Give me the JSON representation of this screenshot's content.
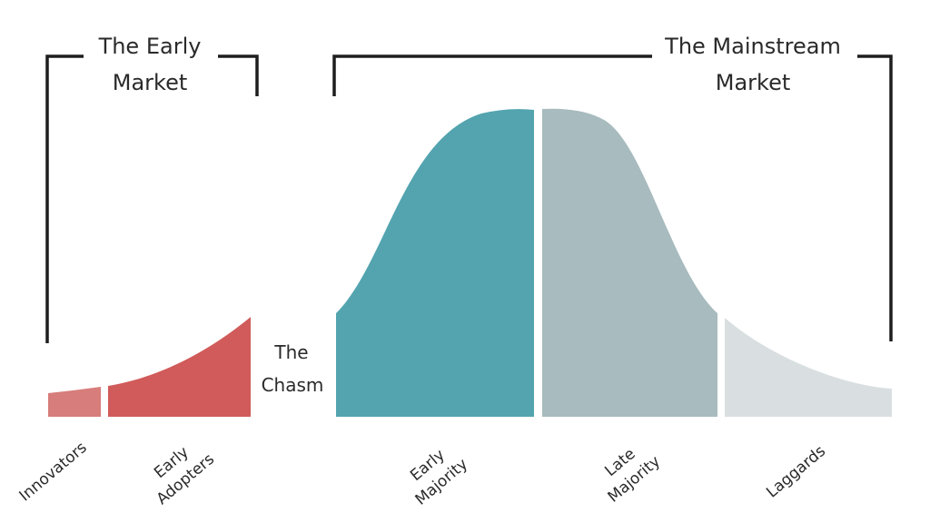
{
  "early_market": {
    "line1": "The Early",
    "line2": "Market"
  },
  "mainstream_market": {
    "line1": "The Mainstream",
    "line2": "Market"
  },
  "chasm": {
    "line1": "The",
    "line2": "Chasm"
  },
  "segments": [
    {
      "line1": "Innovators",
      "line2": "",
      "color": "#d77d7b"
    },
    {
      "line1": "Early",
      "line2": "Adopters",
      "color": "#d05b5a"
    },
    {
      "line1": "Early",
      "line2": "Majority",
      "color": "#53a4af"
    },
    {
      "line1": "Late",
      "line2": "Majority",
      "color": "#a8bbbe"
    },
    {
      "line1": "Laggards",
      "line2": "",
      "color": "#d9dfe1"
    }
  ],
  "bracket_color": "#1e1e1e"
}
